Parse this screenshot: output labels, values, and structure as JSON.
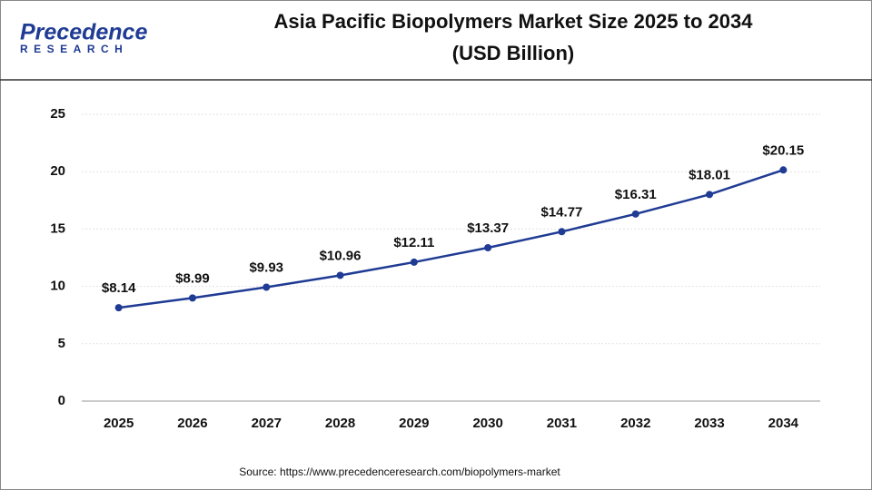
{
  "logo": {
    "name": "Precedence",
    "tagline": "RESEARCH"
  },
  "chart_data": {
    "type": "line",
    "title": "Asia Pacific Biopolymers Market Size 2025 to 2034",
    "subtitle": "(USD Billion)",
    "categories": [
      "2025",
      "2026",
      "2027",
      "2028",
      "2029",
      "2030",
      "2031",
      "2032",
      "2033",
      "2034"
    ],
    "values": [
      8.14,
      8.99,
      9.93,
      10.96,
      12.11,
      13.37,
      14.77,
      16.31,
      18.01,
      20.15
    ],
    "value_labels": [
      "$8.14",
      "$8.99",
      "$9.93",
      "$10.96",
      "$12.11",
      "$13.37",
      "$14.77",
      "$16.31",
      "$18.01",
      "$20.15"
    ],
    "color": "#1f3b94",
    "ylim": [
      0,
      25
    ],
    "yticks": [
      0,
      5,
      10,
      15,
      20,
      25
    ],
    "grid": true,
    "source": "Source: https://www.precedenceresearch.com/biopolymers-market"
  }
}
